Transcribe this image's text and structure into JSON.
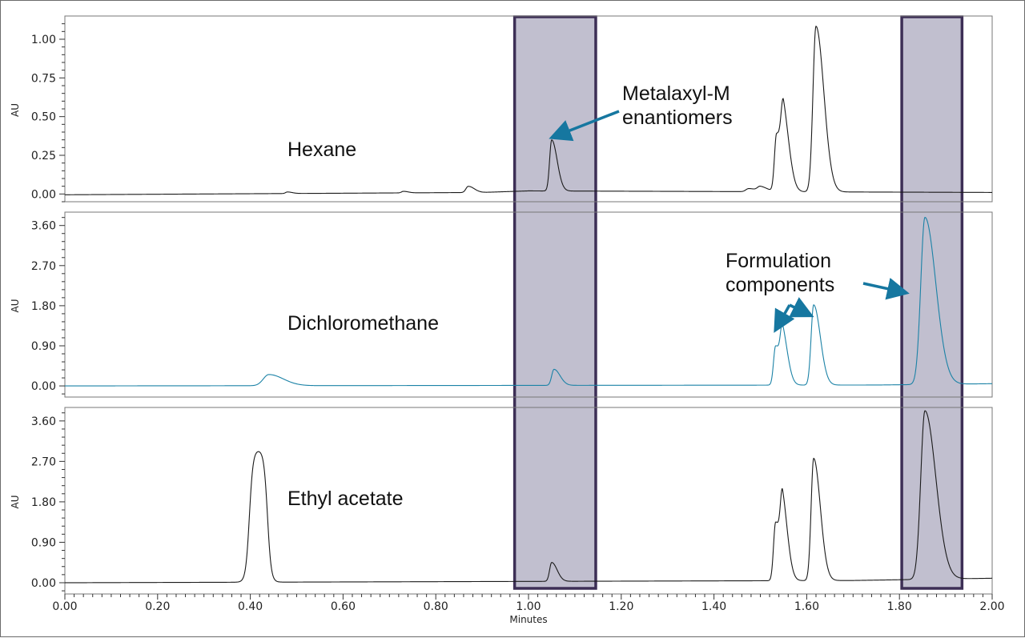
{
  "colors": {
    "dark_trace": "#1a1a1a",
    "teal_trace": "#1b82a6",
    "highlight_fill": "#bebccc",
    "highlight_border": "#3d2f56",
    "arrow": "#1677a0"
  },
  "chart_data": {
    "type": "line",
    "xlabel": "Minutes",
    "xlim": [
      0.0,
      2.0
    ],
    "x_ticks": [
      "0.00",
      "0.20",
      "0.40",
      "0.60",
      "0.80",
      "1.00",
      "1.20",
      "1.40",
      "1.60",
      "1.80",
      "2.00"
    ],
    "highlight_windows": [
      [
        0.97,
        1.145
      ],
      [
        1.805,
        1.935
      ]
    ],
    "panels": [
      {
        "ylabel": "AU",
        "ylim": [
          -0.05,
          1.15
        ],
        "y_ticks": [
          "0.00",
          "0.25",
          "0.50",
          "0.75",
          "1.00"
        ],
        "trace_label": "Hexane",
        "color": "dark",
        "baseline": [
          [
            0.0,
            -0.005
          ],
          [
            0.9,
            0.01
          ],
          [
            1.0,
            0.02
          ],
          [
            2.0,
            0.01
          ]
        ],
        "peaks": [
          [
            0.48,
            0.01,
            0.004
          ],
          [
            0.73,
            0.01,
            0.004
          ],
          [
            0.87,
            0.04,
            0.005
          ],
          [
            1.05,
            0.33,
            0.0045
          ],
          [
            1.475,
            0.02,
            0.006
          ],
          [
            1.5,
            0.03,
            0.006
          ],
          [
            1.535,
            0.37,
            0.0045
          ],
          [
            1.55,
            0.43,
            0.005
          ],
          [
            1.62,
            1.07,
            0.0065
          ]
        ],
        "annotation": {
          "lines": [
            "Metalaxyl-M",
            "enantiomers"
          ],
          "arrow_to": [
            1.055,
            0.37
          ]
        }
      },
      {
        "ylabel": "AU",
        "ylim": [
          -0.25,
          3.9
        ],
        "y_ticks": [
          "0.00",
          "0.90",
          "1.80",
          "2.70",
          "3.60"
        ],
        "trace_label": "Dichloromethane",
        "color": "teal",
        "baseline": [
          [
            0.0,
            0.0
          ],
          [
            1.75,
            0.02
          ],
          [
            2.0,
            0.05
          ]
        ],
        "peaks": [
          [
            0.44,
            0.25,
            0.012
          ],
          [
            1.055,
            0.36,
            0.005
          ],
          [
            1.533,
            0.88,
            0.0045
          ],
          [
            1.548,
            0.98,
            0.0045
          ],
          [
            1.615,
            1.8,
            0.0055
          ],
          [
            1.855,
            3.75,
            0.009
          ]
        ],
        "annotation": {
          "lines": [
            "Formulation",
            "components"
          ],
          "arrows_to": [
            [
              1.535,
              1.3
            ],
            [
              1.605,
              1.6
            ],
            [
              1.81,
              2.1
            ]
          ]
        }
      },
      {
        "ylabel": "AU",
        "ylim": [
          -0.25,
          3.9
        ],
        "y_ticks": [
          "0.00",
          "0.90",
          "1.80",
          "2.70",
          "3.60"
        ],
        "trace_label": "Ethyl acetate",
        "color": "dark",
        "baseline": [
          [
            0.0,
            0.0
          ],
          [
            1.7,
            0.05
          ],
          [
            2.0,
            0.1
          ]
        ],
        "plateau": [
          0.398,
          0.437,
          2.95
        ],
        "peaks": [
          [
            1.05,
            0.42,
            0.0045
          ],
          [
            1.533,
            1.3,
            0.0045
          ],
          [
            1.548,
            1.45,
            0.0045
          ],
          [
            1.615,
            2.72,
            0.0055
          ],
          [
            1.855,
            3.75,
            0.009
          ]
        ]
      }
    ]
  }
}
